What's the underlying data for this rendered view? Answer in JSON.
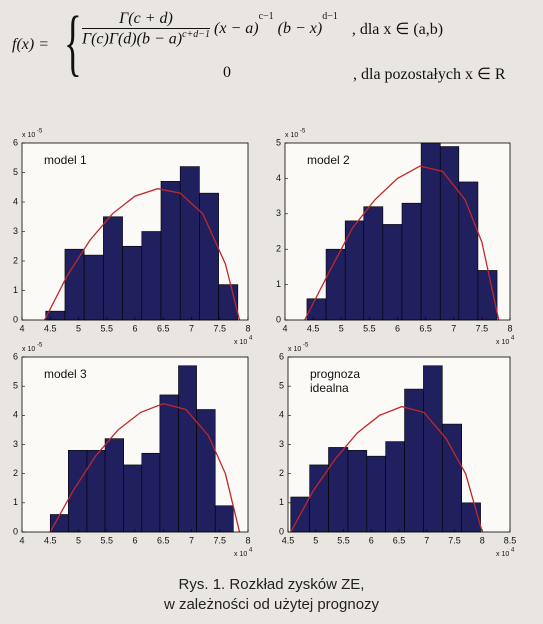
{
  "formula": {
    "lhs": "f(x) =",
    "numerator": "Γ(c + d)",
    "denominator": "Γ(c)Γ(d)(b − a)",
    "denominator_exp": "c+d−1",
    "factor1": "(x − a)",
    "factor1_exp": "c−1",
    "factor2": "(b − x)",
    "factor2_exp": "d−1",
    "condition1": ", dla x ∈ (a,b)",
    "zero": "0",
    "condition2": ", dla pozostałych x ∈ R"
  },
  "caption": [
    "Rys. 1. Rozkład zysków ZE,",
    "w zależności od użytej prognozy"
  ],
  "chart_data": [
    {
      "type": "histogram",
      "annotation": [
        "model 1"
      ],
      "color": "#20205e",
      "bins": [
        4.42,
        4.76,
        5.1,
        5.44,
        5.78,
        6.12,
        6.46,
        6.8,
        7.14,
        7.48,
        7.82
      ],
      "values": [
        0.3,
        2.4,
        2.2,
        3.5,
        2.5,
        3.0,
        4.7,
        5.2,
        4.3,
        1.2
      ],
      "line": {
        "color": "#c0272d",
        "x": [
          4.4,
          4.8,
          5.2,
          5.6,
          6.0,
          6.4,
          6.8,
          7.2,
          7.6,
          7.85
        ],
        "y": [
          0,
          1.5,
          2.7,
          3.6,
          4.2,
          4.45,
          4.3,
          3.6,
          1.9,
          0
        ]
      },
      "xlim": [
        4,
        8
      ],
      "xticks": [
        4,
        4.5,
        5,
        5.5,
        6,
        6.5,
        7,
        7.5,
        8
      ],
      "ylim": [
        0,
        6
      ],
      "yticks": [
        0,
        1,
        2,
        3,
        4,
        5,
        6
      ],
      "x_multiplier": {
        "base": "x 10",
        "exponent": "4"
      },
      "y_multiplier": {
        "base": "x 10",
        "exponent": "-5"
      }
    },
    {
      "type": "histogram",
      "annotation": [
        "model 2"
      ],
      "color": "#20205e",
      "bins": [
        4.39,
        4.73,
        5.07,
        5.4,
        5.74,
        6.08,
        6.42,
        6.76,
        7.09,
        7.43,
        7.77
      ],
      "values": [
        0.6,
        2.0,
        2.8,
        3.2,
        2.7,
        3.3,
        5.0,
        4.9,
        3.9,
        1.4
      ],
      "line": {
        "color": "#c0272d",
        "x": [
          4.35,
          4.8,
          5.2,
          5.6,
          6.0,
          6.4,
          6.8,
          7.2,
          7.5,
          7.8
        ],
        "y": [
          0,
          1.4,
          2.6,
          3.4,
          4.0,
          4.35,
          4.2,
          3.4,
          2.2,
          0
        ]
      },
      "xlim": [
        4,
        8
      ],
      "xticks": [
        4,
        4.5,
        5,
        5.5,
        6,
        6.5,
        7,
        7.5,
        8
      ],
      "ylim": [
        0,
        5
      ],
      "yticks": [
        0,
        1,
        2,
        3,
        4,
        5
      ],
      "x_multiplier": {
        "base": "x 10",
        "exponent": "4"
      },
      "y_multiplier": {
        "base": "x 10",
        "exponent": "-5"
      }
    },
    {
      "type": "histogram",
      "annotation": [
        "model 3"
      ],
      "color": "#20205e",
      "bins": [
        4.5,
        4.82,
        5.15,
        5.47,
        5.8,
        6.12,
        6.44,
        6.77,
        7.09,
        7.42,
        7.74
      ],
      "values": [
        0.6,
        2.8,
        2.8,
        3.2,
        2.3,
        2.7,
        4.7,
        5.7,
        4.2,
        0.9
      ],
      "line": {
        "color": "#c0272d",
        "x": [
          4.5,
          4.9,
          5.3,
          5.7,
          6.1,
          6.5,
          6.9,
          7.3,
          7.6,
          7.85
        ],
        "y": [
          0,
          1.4,
          2.6,
          3.5,
          4.1,
          4.4,
          4.2,
          3.3,
          2.0,
          0
        ]
      },
      "xlim": [
        4,
        8
      ],
      "xticks": [
        4,
        4.5,
        5,
        5.5,
        6,
        6.5,
        7,
        7.5,
        8
      ],
      "ylim": [
        0,
        6
      ],
      "yticks": [
        0,
        1,
        2,
        3,
        4,
        5,
        6
      ],
      "x_multiplier": {
        "base": "x 10",
        "exponent": "4"
      },
      "y_multiplier": {
        "base": "x 10",
        "exponent": "-5"
      }
    },
    {
      "type": "histogram",
      "annotation": [
        "prognoza",
        "idealna"
      ],
      "color": "#20205e",
      "bins": [
        4.55,
        4.89,
        5.23,
        5.58,
        5.92,
        6.26,
        6.6,
        6.94,
        7.28,
        7.63,
        7.97
      ],
      "values": [
        1.2,
        2.3,
        2.9,
        2.8,
        2.6,
        3.1,
        4.9,
        5.7,
        3.7,
        1.0
      ],
      "line": {
        "color": "#c0272d",
        "x": [
          4.55,
          4.95,
          5.35,
          5.75,
          6.15,
          6.55,
          6.95,
          7.35,
          7.7,
          8.0
        ],
        "y": [
          0,
          1.4,
          2.5,
          3.4,
          4.0,
          4.3,
          4.1,
          3.2,
          2.0,
          0
        ]
      },
      "xlim": [
        4.5,
        8.5
      ],
      "xticks": [
        4.5,
        5,
        5.5,
        6,
        6.5,
        7,
        7.5,
        8,
        8.5
      ],
      "ylim": [
        0,
        6
      ],
      "yticks": [
        0,
        1,
        2,
        3,
        4,
        5,
        6
      ],
      "x_multiplier": {
        "base": "x 10",
        "exponent": "4"
      },
      "y_multiplier": {
        "base": "x 10",
        "exponent": "-5"
      }
    }
  ]
}
